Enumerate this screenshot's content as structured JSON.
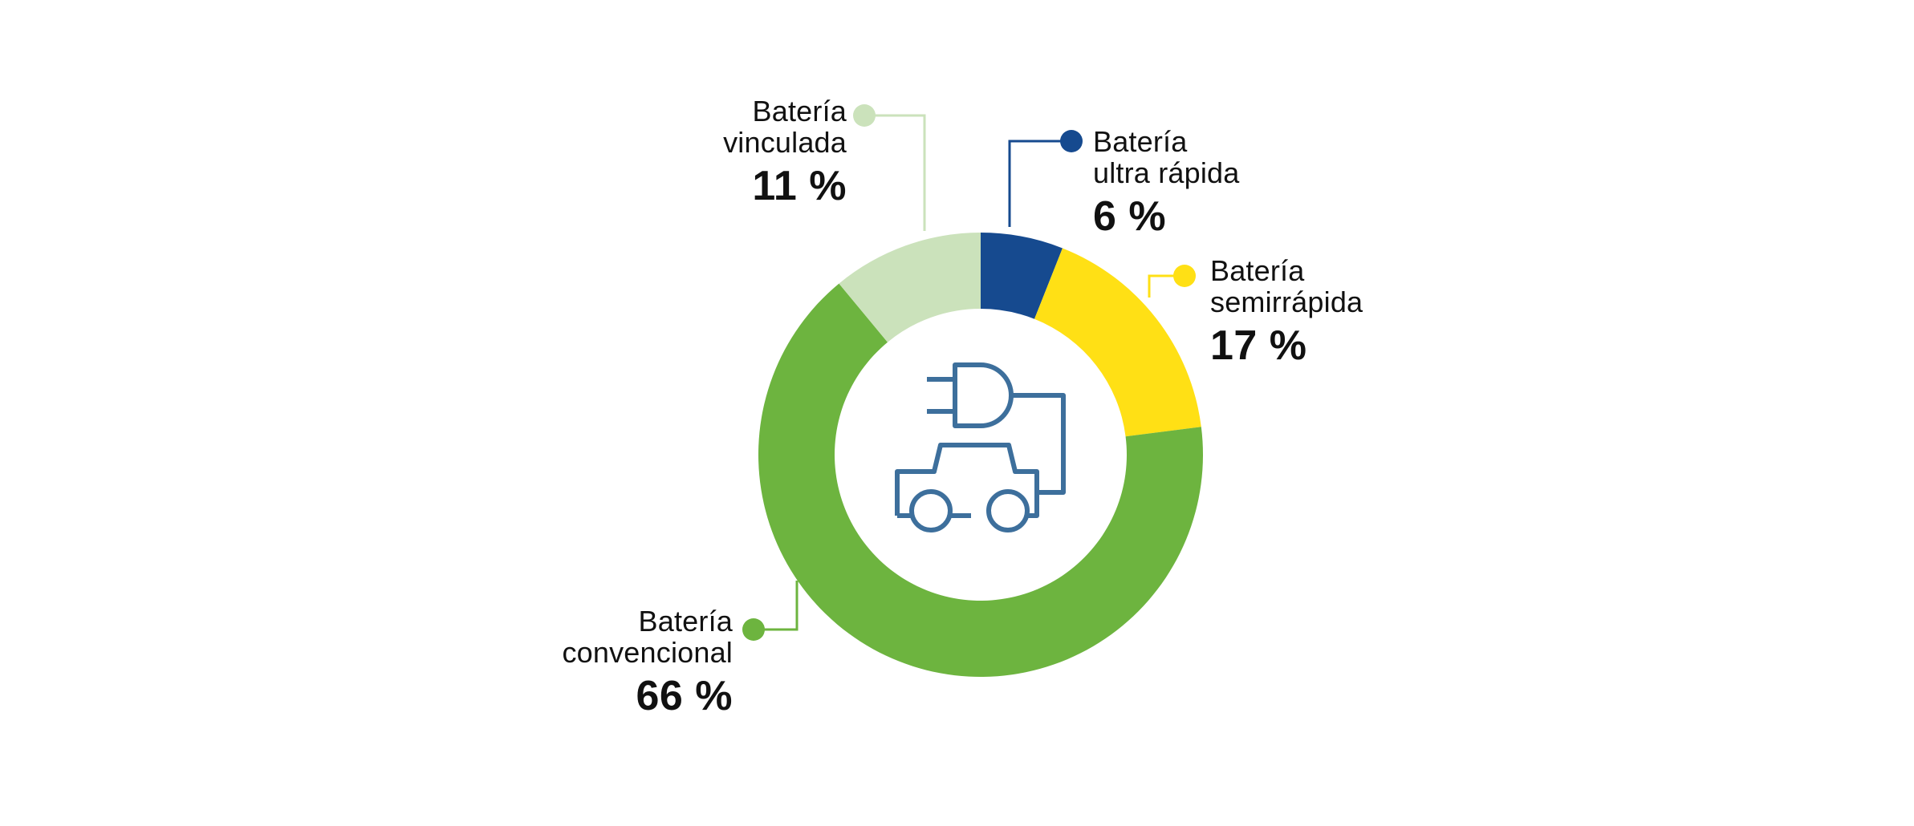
{
  "chart_data": {
    "type": "pie",
    "style": "donut",
    "start_angle_deg": 0,
    "direction": "clockwise",
    "center_icon": "electric-car-plug-icon",
    "slices": [
      {
        "key": "ultra",
        "label_line1": "Batería",
        "label_line2": "ultra rápida",
        "value": 6,
        "value_label": "6 %",
        "color": "#164a8f",
        "label_side": "right"
      },
      {
        "key": "semi",
        "label_line1": "Batería",
        "label_line2": "semirrápida",
        "value": 17,
        "value_label": "17 %",
        "color": "#ffe015",
        "label_side": "right"
      },
      {
        "key": "convencional",
        "label_line1": "Batería",
        "label_line2": "convencional",
        "value": 66,
        "value_label": "66 %",
        "color": "#6db43f",
        "label_side": "left"
      },
      {
        "key": "vinculada",
        "label_line1": "Batería",
        "label_line2": "vinculada",
        "value": 11,
        "value_label": "11 %",
        "color": "#cbe2bb",
        "label_side": "left"
      }
    ],
    "icon_color": "#3d6f9c"
  }
}
